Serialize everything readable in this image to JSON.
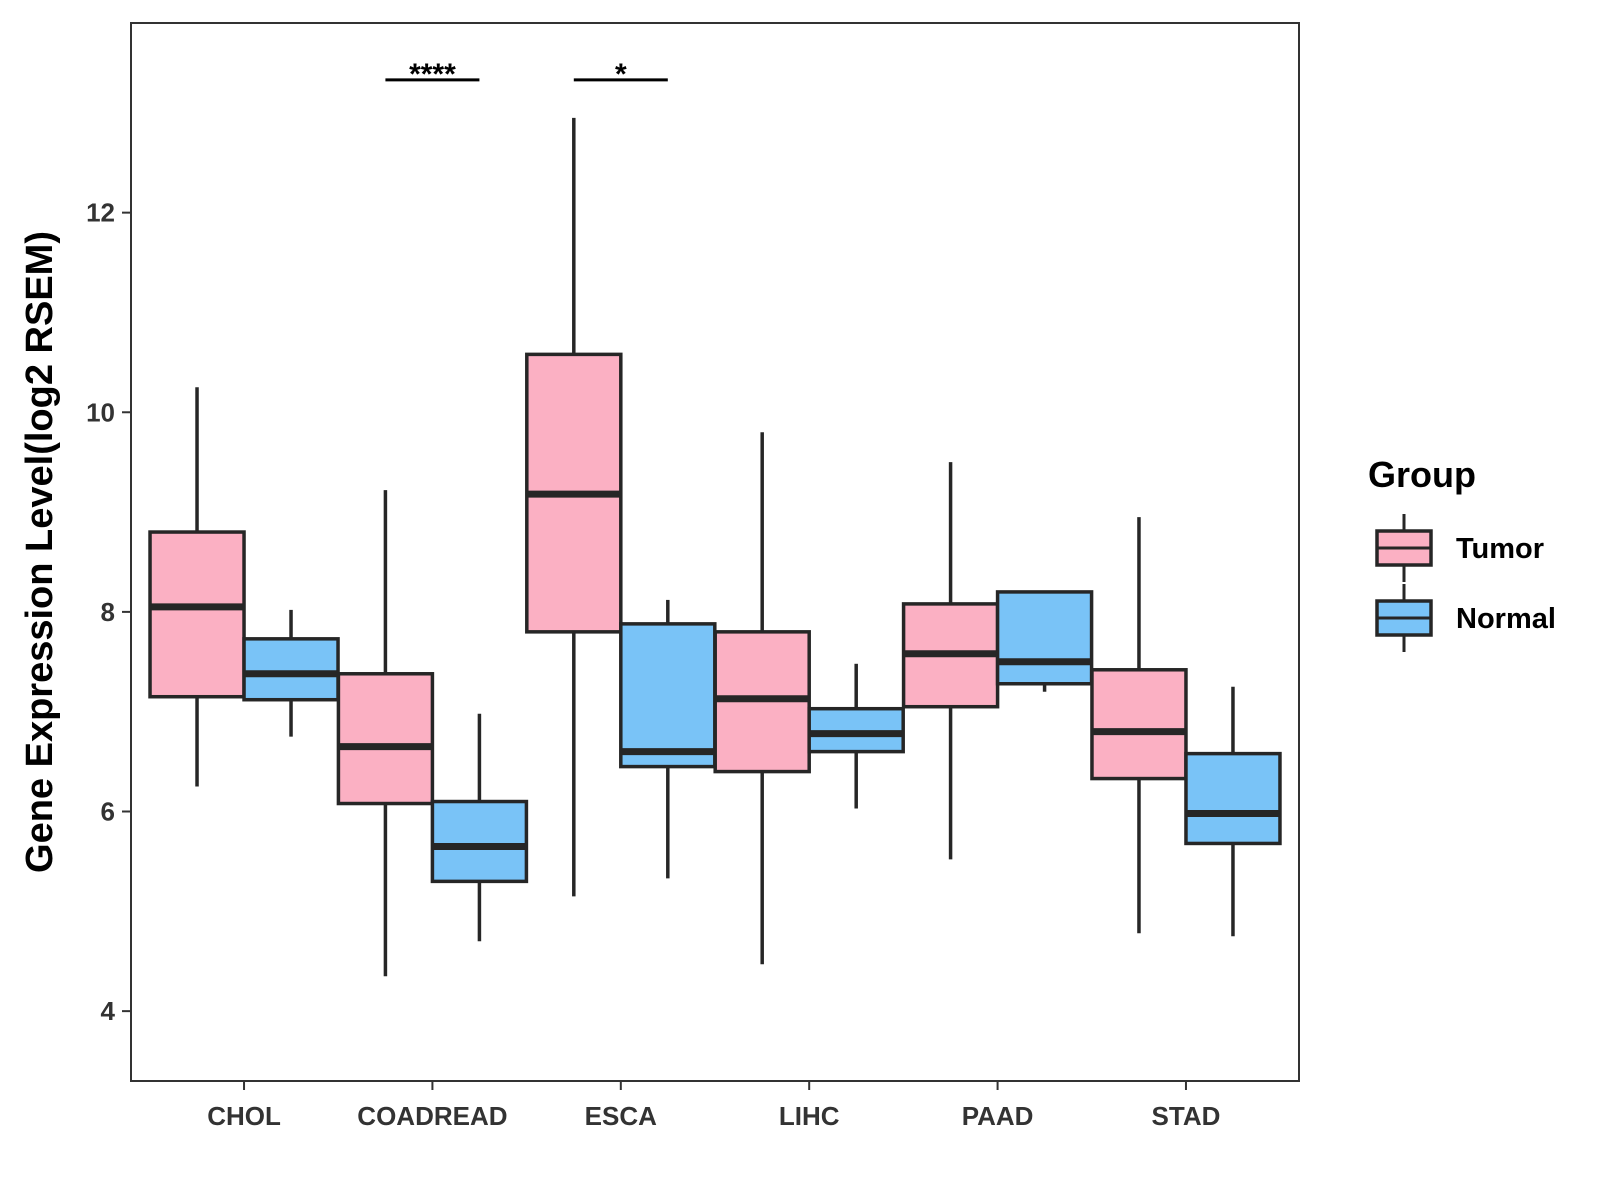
{
  "chart_data": {
    "type": "boxplot",
    "title": "",
    "xlabel": "",
    "ylabel": "Gene Expression Level(log2 RSEM)",
    "ylim": [
      3.3,
      13.9
    ],
    "yticks": [
      4,
      6,
      8,
      10,
      12
    ],
    "ytick_labels": [
      "4",
      "6",
      "8",
      "10",
      "12"
    ],
    "grid": false,
    "categories": [
      "CHOL",
      "COADREAD",
      "ESCA",
      "LIHC",
      "PAAD",
      "STAD"
    ],
    "legend": {
      "title": "Group",
      "position": "right",
      "entries": [
        "Tumor",
        "Normal"
      ]
    },
    "series": [
      {
        "name": "Tumor",
        "color": "#FBB0C3",
        "boxes": [
          {
            "min": 6.25,
            "q1": 7.15,
            "median": 8.05,
            "q3": 8.8,
            "max": 10.25
          },
          {
            "min": 4.35,
            "q1": 6.08,
            "median": 6.65,
            "q3": 7.38,
            "max": 9.22
          },
          {
            "min": 5.15,
            "q1": 7.8,
            "median": 9.18,
            "q3": 10.58,
            "max": 12.95
          },
          {
            "min": 4.47,
            "q1": 6.4,
            "median": 7.13,
            "q3": 7.8,
            "max": 9.8
          },
          {
            "min": 5.52,
            "q1": 7.05,
            "median": 7.58,
            "q3": 8.08,
            "max": 9.5
          },
          {
            "min": 4.78,
            "q1": 6.33,
            "median": 6.8,
            "q3": 7.42,
            "max": 8.95
          }
        ]
      },
      {
        "name": "Normal",
        "color": "#79C3F7",
        "boxes": [
          {
            "min": 6.75,
            "q1": 7.12,
            "median": 7.38,
            "q3": 7.73,
            "max": 8.02
          },
          {
            "min": 4.7,
            "q1": 5.3,
            "median": 5.65,
            "q3": 6.1,
            "max": 6.98
          },
          {
            "min": 5.33,
            "q1": 6.45,
            "median": 6.6,
            "q3": 7.88,
            "max": 8.12
          },
          {
            "min": 6.03,
            "q1": 6.6,
            "median": 6.78,
            "q3": 7.03,
            "max": 7.48
          },
          {
            "min": 7.2,
            "q1": 7.28,
            "median": 7.5,
            "q3": 8.2,
            "max": 8.2
          },
          {
            "min": 4.75,
            "q1": 5.68,
            "median": 5.98,
            "q3": 6.58,
            "max": 7.25
          }
        ]
      }
    ],
    "annotations": [
      {
        "category": "COADREAD",
        "label": "****",
        "y": 13.33
      },
      {
        "category": "ESCA",
        "label": "*",
        "y": 13.33
      }
    ]
  }
}
